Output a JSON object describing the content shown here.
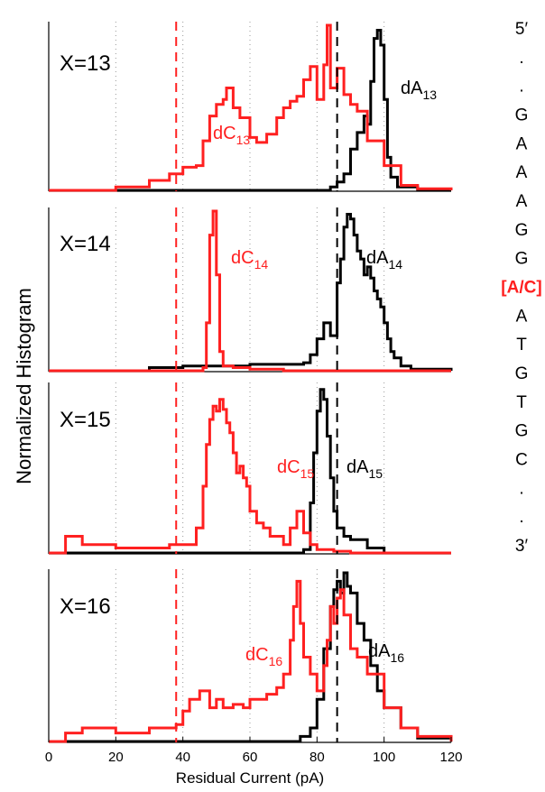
{
  "figure": {
    "ylabel": "Normalized Histogram",
    "xlabel": "Residual Current (pA)",
    "x_ticks": [
      "0",
      "20",
      "40",
      "60",
      "80",
      "100",
      "120"
    ],
    "sequence": [
      "5′",
      ".",
      ".",
      "G",
      "A",
      "A",
      "A",
      "G",
      "G",
      "[A/C]",
      "A",
      "T",
      "G",
      "T",
      "G",
      "C",
      ".",
      ".",
      "3′"
    ],
    "highlight_index": 9
  },
  "colors": {
    "dC": "#ff2020",
    "dA": "#000000",
    "axis": "#000000",
    "grid": "#9a9a9a"
  },
  "chart_data": [
    {
      "type": "line",
      "panel_label": "X=13",
      "xlim": [
        0,
        120
      ],
      "vlines": [
        38,
        86
      ],
      "series": [
        {
          "name": "dC",
          "sub": "13",
          "color": "#ff2020",
          "x": [
            0,
            20,
            30,
            36,
            40,
            44,
            46,
            48,
            50,
            52,
            53,
            55,
            57,
            60,
            62,
            65,
            68,
            70,
            72,
            74,
            76,
            78,
            80,
            82,
            83,
            84,
            86,
            88,
            90,
            92,
            95,
            100,
            105,
            110,
            120
          ],
          "y": [
            0,
            2,
            6,
            10,
            14,
            15,
            30,
            45,
            52,
            55,
            62,
            50,
            44,
            32,
            29,
            34,
            44,
            50,
            54,
            57,
            67,
            75,
            55,
            76,
            100,
            62,
            74,
            58,
            52,
            48,
            30,
            15,
            3,
            1,
            0
          ]
        },
        {
          "name": "dA",
          "sub": "13",
          "color": "#000000",
          "x": [
            0,
            60,
            80,
            84,
            86,
            88,
            90,
            92,
            94,
            95,
            96,
            97,
            98,
            99,
            100,
            101,
            102,
            104,
            110,
            120
          ],
          "y": [
            0,
            0,
            0,
            2,
            5,
            10,
            25,
            35,
            45,
            40,
            66,
            92,
            97,
            88,
            55,
            20,
            8,
            2,
            0,
            0
          ]
        }
      ]
    },
    {
      "type": "line",
      "panel_label": "X=14",
      "xlim": [
        0,
        120
      ],
      "vlines": [
        38,
        86
      ],
      "series": [
        {
          "name": "dC",
          "sub": "14",
          "color": "#ff2020",
          "x": [
            0,
            44,
            46,
            47,
            48,
            49,
            50,
            51,
            52,
            55,
            60,
            70,
            80,
            120
          ],
          "y": [
            0,
            0,
            2,
            30,
            85,
            100,
            60,
            12,
            3,
            2,
            1,
            0,
            0,
            0
          ]
        },
        {
          "name": "dA",
          "sub": "14",
          "color": "#000000",
          "x": [
            0,
            20,
            30,
            40,
            50,
            60,
            70,
            76,
            78,
            80,
            82,
            84,
            86,
            87,
            88,
            89,
            90,
            91,
            92,
            93,
            94,
            95,
            96,
            97,
            98,
            99,
            100,
            101,
            102,
            103,
            105,
            108,
            120
          ],
          "y": [
            0,
            0,
            2,
            3,
            3,
            4,
            4,
            5,
            10,
            20,
            30,
            22,
            55,
            70,
            90,
            98,
            95,
            85,
            75,
            70,
            60,
            65,
            58,
            50,
            45,
            40,
            30,
            20,
            12,
            8,
            3,
            1,
            0
          ]
        }
      ]
    },
    {
      "type": "line",
      "panel_label": "X=15",
      "xlim": [
        0,
        120
      ],
      "vlines": [
        38,
        86
      ],
      "series": [
        {
          "name": "dC",
          "sub": "15",
          "color": "#ff2020",
          "x": [
            0,
            5,
            10,
            20,
            30,
            36,
            40,
            44,
            46,
            47,
            48,
            49,
            50,
            51,
            52,
            53,
            54,
            55,
            56,
            57,
            58,
            59,
            60,
            62,
            64,
            66,
            70,
            72,
            74,
            76,
            78,
            80,
            85,
            90,
            100,
            120
          ],
          "y": [
            0,
            10,
            5,
            3,
            3,
            5,
            5,
            15,
            40,
            65,
            80,
            88,
            85,
            92,
            86,
            78,
            72,
            60,
            48,
            52,
            45,
            40,
            25,
            18,
            15,
            10,
            5,
            15,
            25,
            12,
            5,
            2,
            1,
            0,
            0,
            0
          ]
        },
        {
          "name": "dA",
          "sub": "15",
          "color": "#000000",
          "x": [
            0,
            70,
            76,
            78,
            79,
            80,
            81,
            82,
            83,
            84,
            85,
            86,
            88,
            90,
            95,
            100,
            120
          ],
          "y": [
            0,
            0,
            2,
            30,
            60,
            85,
            98,
            92,
            70,
            45,
            25,
            15,
            10,
            8,
            3,
            0,
            0
          ]
        }
      ]
    },
    {
      "type": "line",
      "panel_label": "X=16",
      "xlim": [
        0,
        120
      ],
      "vlines": [
        38,
        86
      ],
      "series": [
        {
          "name": "dC",
          "sub": "16",
          "color": "#ff2020",
          "x": [
            0,
            5,
            10,
            20,
            30,
            38,
            40,
            42,
            45,
            48,
            50,
            52,
            55,
            58,
            60,
            62,
            65,
            68,
            70,
            72,
            73,
            74,
            75,
            76,
            78,
            80,
            82,
            83,
            84,
            85,
            86,
            87,
            88,
            90,
            92,
            95,
            100,
            105,
            110,
            120
          ],
          "y": [
            0,
            5,
            8,
            5,
            8,
            10,
            18,
            25,
            30,
            20,
            25,
            20,
            22,
            20,
            25,
            25,
            28,
            32,
            40,
            60,
            80,
            95,
            70,
            50,
            40,
            30,
            45,
            60,
            80,
            70,
            85,
            90,
            75,
            55,
            50,
            40,
            20,
            8,
            3,
            0
          ]
        },
        {
          "name": "dA",
          "sub": "16",
          "color": "#000000",
          "x": [
            0,
            70,
            75,
            78,
            80,
            82,
            84,
            85,
            86,
            87,
            88,
            89,
            90,
            92,
            94,
            96,
            98,
            100,
            105,
            110,
            120
          ],
          "y": [
            0,
            0,
            3,
            8,
            25,
            55,
            80,
            90,
            95,
            88,
            100,
            92,
            88,
            70,
            60,
            45,
            30,
            20,
            8,
            2,
            0
          ]
        }
      ]
    }
  ]
}
